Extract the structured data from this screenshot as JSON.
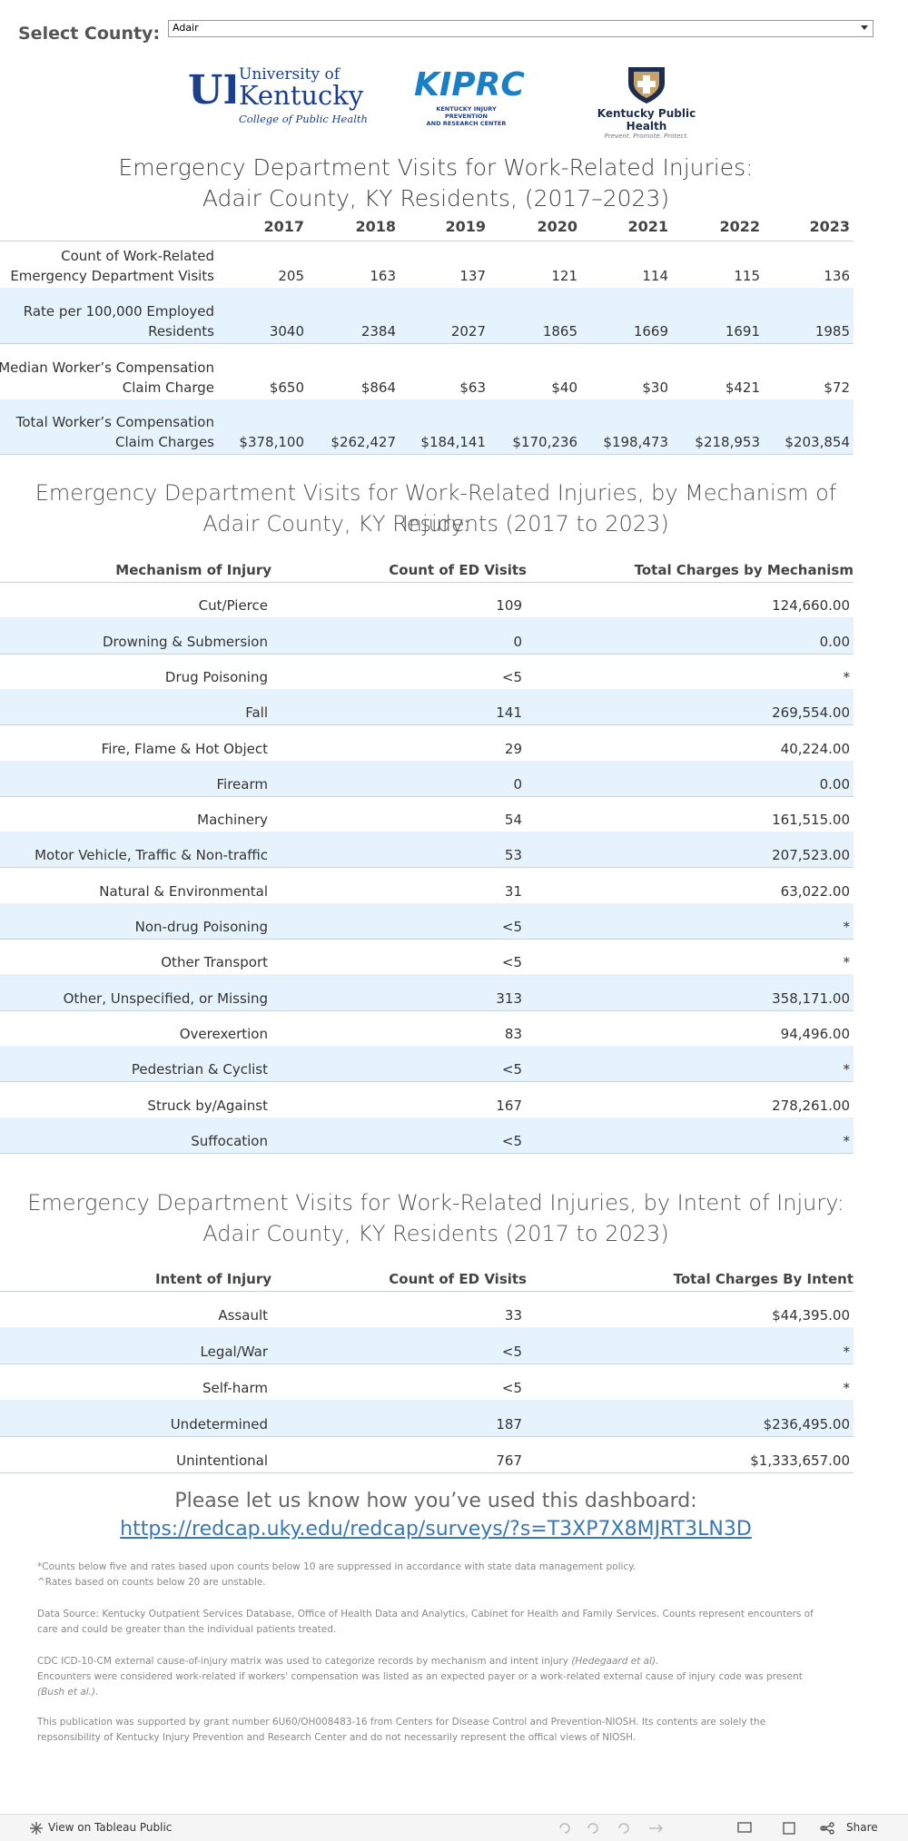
{
  "filter": {
    "label": "Select County:",
    "value": "Adair"
  },
  "logos": {
    "uk": {
      "line1": "University of",
      "line2": "Kentucky",
      "line3": "College of Public Health"
    },
    "kiprc": {
      "name": "KIPRC",
      "sub1": "KENTUCKY INJURY PREVENTION",
      "sub2": "AND RESEARCH CENTER"
    },
    "kph": {
      "name": "Kentucky Public Health",
      "tagline": "Prevent. Promote. Protect."
    }
  },
  "summary": {
    "title": [
      "Emergency Department Visits for Work-Related Injuries:",
      "Adair County, KY Residents, (2017–2023)"
    ],
    "years": [
      "2017",
      "2018",
      "2019",
      "2020",
      "2021",
      "2022",
      "2023"
    ],
    "rows": [
      {
        "label": [
          "Count of Work-Related",
          "Emergency Department Visits"
        ],
        "values": [
          "205",
          "163",
          "137",
          "121",
          "114",
          "115",
          "136"
        ]
      },
      {
        "label": [
          "Rate per 100,000 Employed",
          "Residents"
        ],
        "values": [
          "3040",
          "2384",
          "2027",
          "1865",
          "1669",
          "1691",
          "1985"
        ]
      },
      {
        "label": [
          "Median Worker’s Compensation",
          "Claim Charge"
        ],
        "values": [
          "$650",
          "$864",
          "$63",
          "$40",
          "$30",
          "$421",
          "$72"
        ]
      },
      {
        "label": [
          "Total Worker’s Compensation",
          "Claim Charges"
        ],
        "values": [
          "$378,100",
          "$262,427",
          "$184,141",
          "$170,236",
          "$198,473",
          "$218,953",
          "$203,854"
        ]
      }
    ]
  },
  "mechanism": {
    "title": [
      "Emergency Department Visits for Work-Related Injuries, by Mechanism of Injury:",
      "Adair County, KY Residents (2017 to 2023)"
    ],
    "headers": [
      "Mechanism of Injury",
      "Count of ED Visits",
      "Total Charges by Mechanism"
    ],
    "rows": [
      [
        "Cut/Pierce",
        "109",
        "124,660.00"
      ],
      [
        "Drowning & Submersion",
        "0",
        "0.00"
      ],
      [
        "Drug Poisoning",
        "<5",
        "*"
      ],
      [
        "Fall",
        "141",
        "269,554.00"
      ],
      [
        "Fire, Flame & Hot Object",
        "29",
        "40,224.00"
      ],
      [
        "Firearm",
        "0",
        "0.00"
      ],
      [
        "Machinery",
        "54",
        "161,515.00"
      ],
      [
        "Motor Vehicle, Traffic & Non-traffic",
        "53",
        "207,523.00"
      ],
      [
        "Natural & Environmental",
        "31",
        "63,022.00"
      ],
      [
        "Non-drug Poisoning",
        "<5",
        "*"
      ],
      [
        "Other Transport",
        "<5",
        "*"
      ],
      [
        "Other, Unspecified, or Missing",
        "313",
        "358,171.00"
      ],
      [
        "Overexertion",
        "83",
        "94,496.00"
      ],
      [
        "Pedestrian & Cyclist",
        "<5",
        "*"
      ],
      [
        "Struck by/Against",
        "167",
        "278,261.00"
      ],
      [
        "Suffocation",
        "<5",
        "*"
      ]
    ]
  },
  "intent": {
    "title": [
      "Emergency Department Visits for Work-Related Injuries, by Intent of Injury:",
      "Adair County, KY Residents (2017 to 2023)"
    ],
    "headers": [
      "Intent of Injury",
      "Count of ED Visits",
      "Total Charges By Intent"
    ],
    "rows": [
      [
        "Assault",
        "33",
        "$44,395.00"
      ],
      [
        "Legal/War",
        "<5",
        "*"
      ],
      [
        "Self-harm",
        "<5",
        "*"
      ],
      [
        "Undetermined",
        "187",
        "$236,495.00"
      ],
      [
        "Unintentional",
        "767",
        "$1,333,657.00"
      ]
    ]
  },
  "feedback": {
    "text": "Please let us know how you’ve used this dashboard:",
    "link": "https://redcap.uky.edu/redcap/surveys/?s=T3XP7X8MJRT3LN3D"
  },
  "notes": {
    "suppression": "*Counts below five and rates based upon counts below 10 are suppressed in accordance with state data management policy.",
    "unstable": "^Rates based on counts below 20 are unstable.",
    "source": "Data Source: Kentucky Outpatient Services Database, Office of Health Data and Analytics, Cabinet for Health and Family Services. Counts represent encounters of care and could be greater than the individual patients treated.",
    "matrix": "CDC ICD-10-CM external cause-of-injury matrix was used to categorize records by  mechanism and intent injury",
    "matrix_cite": "(Hedegaard et al).",
    "workrelated": "Encounters were considered work-related if workers' compensation was listed as an expected payer or a work-related external  cause of injury code was present",
    "workrelated_cite": "(Bush et al.).",
    "funding": "This publication was supported by grant number 6U60/OH008483-16 from Centers for Disease Control and Prevention-NIOSH. Its contents are solely the repsonsibility of Kentucky Injury Prevention and Research Center and do not necessarily represent the offical views of NIOSH."
  },
  "toolbar": {
    "view": "View on Tableau Public",
    "share": "Share"
  }
}
